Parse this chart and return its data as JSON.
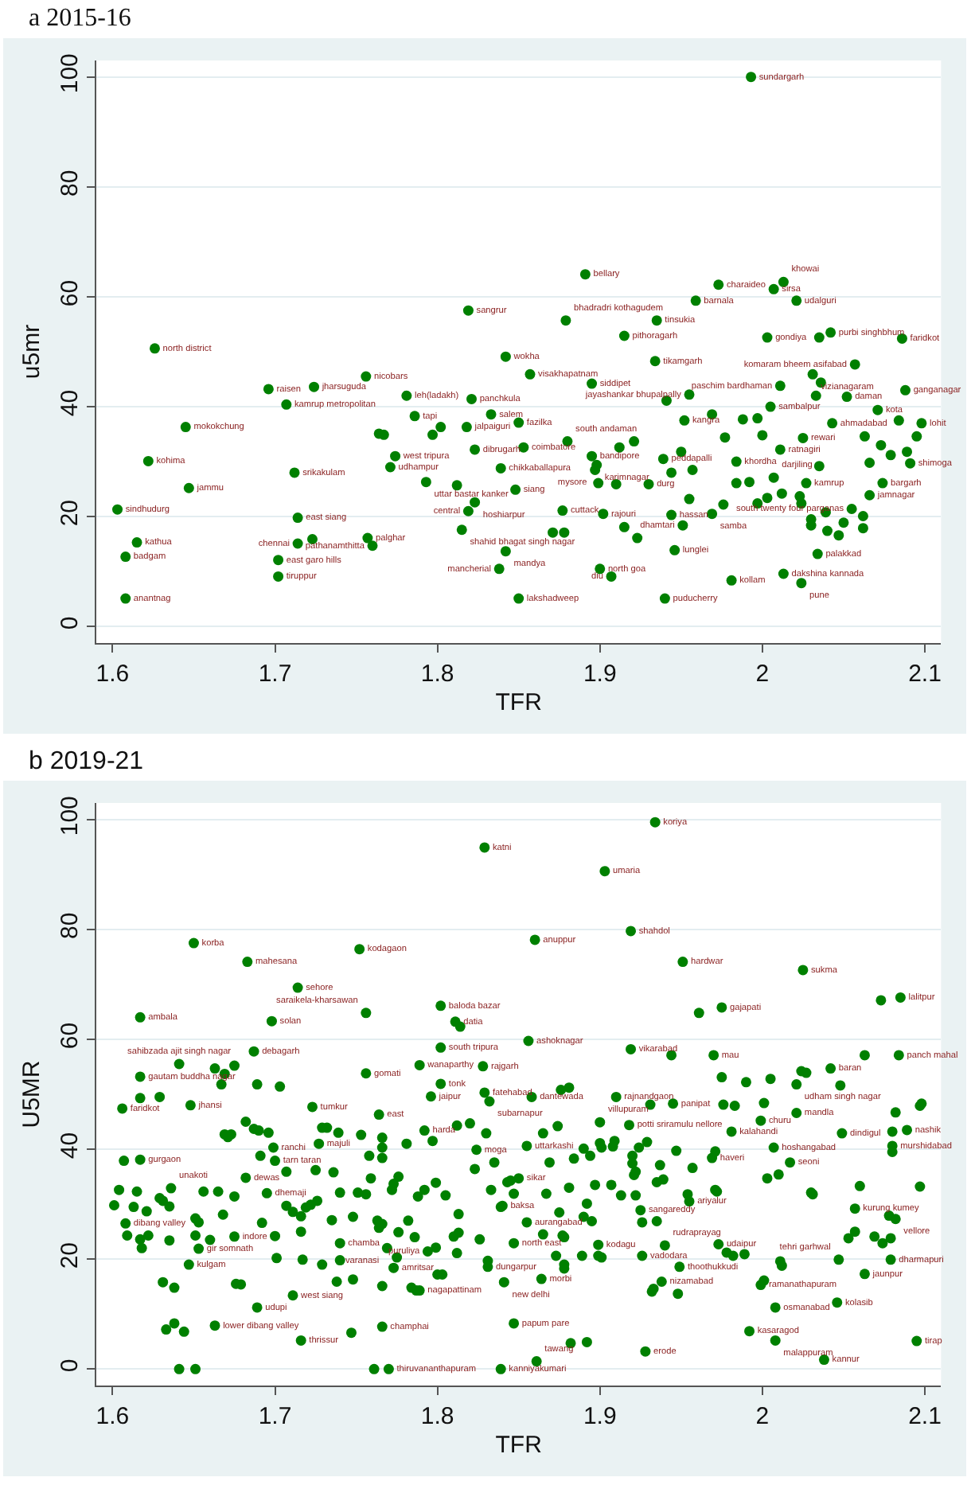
{
  "chart_data": [
    {
      "type": "scatter",
      "title": "a 2015-16",
      "xlabel": "TFR",
      "ylabel": "u5mr",
      "xlim": [
        1.59,
        2.11
      ],
      "ylim": [
        -3,
        103
      ],
      "xticks": [
        1.6,
        1.7,
        1.8,
        1.9,
        2,
        2.1
      ],
      "yticks": [
        0,
        20,
        40,
        60,
        80,
        100
      ],
      "grid": "y",
      "marker": "circle",
      "series": [
        {
          "color": "#008000",
          "x": [
            1.626,
            1.696,
            1.724,
            1.756,
            1.707,
            1.781,
            1.821,
            1.819,
            1.645,
            1.622,
            1.647,
            1.603,
            1.615,
            1.608,
            1.608,
            1.712,
            1.714,
            1.723,
            1.714,
            1.702,
            1.702,
            1.757,
            1.76,
            1.786,
            1.764,
            1.767,
            1.797,
            1.802,
            1.818,
            1.833,
            1.823,
            1.774,
            1.771,
            1.839,
            1.793,
            1.812,
            1.848,
            1.823,
            1.819,
            1.815,
            1.842,
            1.838,
            1.85,
            1.853,
            1.85,
            1.842,
            1.993,
            1.891,
            1.973,
            2.007,
            2.013,
            1.959,
            2.021,
            1.879,
            1.935,
            1.915,
            2.003,
            2.035,
            2.042,
            2.086,
            1.934,
            2.057,
            1.857,
            1.895,
            2.031,
            2.036,
            2.011,
            2.088,
            2.033,
            2.052,
            1.955,
            1.941,
            2.005,
            2.071,
            1.952,
            1.969,
            1.988,
            1.997,
            2.043,
            2.084,
            2.098,
            1.977,
            2.0,
            2.025,
            2.011,
            2.063,
            2.073,
            2.079,
            2.089,
            2.095,
            2.091,
            1.88,
            1.921,
            1.912,
            1.895,
            1.898,
            1.897,
            1.899,
            1.91,
            1.93,
            1.939,
            1.95,
            1.944,
            1.957,
            1.984,
            1.984,
            1.992,
            2.007,
            2.027,
            2.074,
            2.035,
            2.066,
            1.955,
            1.976,
            1.997,
            2.003,
            2.012,
            2.023,
            2.024,
            2.066,
            2.039,
            2.055,
            2.062,
            1.877,
            1.902,
            1.944,
            1.969,
            1.871,
            1.878,
            1.915,
            1.923,
            1.951,
            1.946,
            1.9,
            1.907,
            1.94,
            1.981,
            2.013,
            2.024,
            2.034,
            2.03,
            2.03,
            2.04,
            2.047,
            2.05,
            2.062
          ],
          "values": [
            50.6,
            43.2,
            43.6,
            45.5,
            40.4,
            42.0,
            41.4,
            57.5,
            36.3,
            30.1,
            25.2,
            21.3,
            15.3,
            12.7,
            5.1,
            28.0,
            19.8,
            15.9,
            15.1,
            12.1,
            9.1,
            16.1,
            14.7,
            38.3,
            35.1,
            34.9,
            34.9,
            36.3,
            36.3,
            38.6,
            32.2,
            31.0,
            29.0,
            28.8,
            26.3,
            25.7,
            24.9,
            22.6,
            21.0,
            17.6,
            13.7,
            10.5,
            5.1,
            32.6,
            37.1,
            49.1,
            100.0,
            64.1,
            62.2,
            61.4,
            62.7,
            59.3,
            59.3,
            55.7,
            55.7,
            52.9,
            52.6,
            52.6,
            53.5,
            52.4,
            48.3,
            47.7,
            45.9,
            44.2,
            45.9,
            44.4,
            43.8,
            43.0,
            42.0,
            41.8,
            42.2,
            41.1,
            40.0,
            39.4,
            37.5,
            38.6,
            37.7,
            37.9,
            37.0,
            37.5,
            37.0,
            34.4,
            34.8,
            34.3,
            32.2,
            34.6,
            33.0,
            31.2,
            31.8,
            34.6,
            29.7,
            33.7,
            33.7,
            32.6,
            31.0,
            29.4,
            28.5,
            26.1,
            25.9,
            25.9,
            30.5,
            31.8,
            28.0,
            28.5,
            30.0,
            26.1,
            26.3,
            27.1,
            26.1,
            26.1,
            29.2,
            29.8,
            23.2,
            22.2,
            22.4,
            23.4,
            24.2,
            23.7,
            22.4,
            23.9,
            20.8,
            21.4,
            20.1,
            21.1,
            20.5,
            20.3,
            20.5,
            17.1,
            17.1,
            18.1,
            16.1,
            18.4,
            13.9,
            10.5,
            9.1,
            5.1,
            8.4,
            9.6,
            7.9,
            13.2,
            19.5,
            18.4,
            17.4,
            16.6,
            18.9,
            17.9
          ],
          "value_labels": [
            "north district",
            "raisen",
            "jharsuguda",
            "nicobars",
            "kamrup metropolitan",
            "leh(ladakh)",
            "panchkula",
            "sangrur",
            "mokokchung",
            "kohima",
            "jammu",
            "sindhudurg",
            "kathua",
            "badgam",
            "anantnag",
            "srikakulam",
            "east siang",
            null,
            "chennai",
            "east garo hills",
            "tiruppur",
            "palghar",
            "pathanamthitta",
            "tapi",
            null,
            null,
            null,
            null,
            "jalpaiguri",
            "salem",
            "dibrugarh",
            "west tripura",
            "udhampur",
            "chikkaballapura",
            "uttar bastar kanker",
            null,
            "siang",
            "hoshiarpur",
            "central",
            "shahid bhagat singh nagar",
            "mandya",
            "mancherial",
            "lakshadweep",
            "coimbatore",
            "fazilka",
            "wokha",
            "sundargarh",
            "bellary",
            "charaideo",
            "sirsa",
            "khowai",
            "barnala",
            "udalguri",
            "bhadradri kothagudem",
            "tinsukia",
            "pithoragarh",
            "gondiya",
            null,
            "purbi singhbhum",
            "faridkot",
            "tikamgarh",
            "komaram bheem asifabad",
            "visakhapatnam",
            "siddipet",
            "vizianagaram",
            null,
            "paschim bardhaman",
            "ganganagar",
            null,
            "daman",
            "jayashankar bhupalpally",
            null,
            "sambalpur",
            "kota",
            "kangra",
            null,
            null,
            null,
            "ahmadabad",
            null,
            "lohit",
            null,
            null,
            "rewari",
            "ratnagiri",
            null,
            null,
            null,
            null,
            null,
            "shimoga",
            "south andaman",
            null,
            null,
            "bandipore",
            "karimnagar",
            "mysore",
            null,
            null,
            "durg",
            "peddapalli",
            null,
            null,
            null,
            "khordha",
            null,
            null,
            "darjiling",
            "kamrup",
            "bargarh",
            null,
            null,
            null,
            null,
            null,
            null,
            null,
            null,
            null,
            "jamnagar",
            null,
            "south twenty four parganas",
            null,
            "cuttack",
            "rajouri",
            "hassan",
            "samba",
            null,
            null,
            null,
            null,
            "dhamtari",
            "lunglei",
            "north goa",
            "diu",
            "puducherry",
            "kollam",
            "dakshina kannada",
            "pune",
            "palakkad",
            null,
            null,
            null,
            null,
            null,
            null
          ]
        }
      ]
    },
    {
      "type": "scatter",
      "title": "b 2019-21",
      "xlabel": "TFR",
      "ylabel": "U5MR",
      "xlim": [
        1.59,
        2.11
      ],
      "ylim": [
        -3,
        103
      ],
      "xticks": [
        1.6,
        1.7,
        1.8,
        1.9,
        2,
        2.1
      ],
      "yticks": [
        0,
        20,
        40,
        60,
        80,
        100
      ],
      "grid": "y",
      "marker": "circle",
      "series": [
        {
          "color": "#008000",
          "x": [
            1.829,
            1.65,
            1.752,
            1.683,
            1.714,
            1.802,
            1.617,
            1.698,
            1.756,
            1.811,
            1.814,
            1.687,
            1.802,
            1.856,
            1.641,
            1.663,
            1.669,
            1.675,
            1.617,
            1.667,
            1.689,
            1.703,
            1.756,
            1.789,
            1.828,
            1.802,
            1.796,
            1.829,
            1.832,
            1.617,
            1.629,
            1.606,
            1.648,
            1.723,
            1.934,
            1.903,
            1.86,
            1.919,
            1.951,
            2.025,
            2.073,
            2.085,
            1.961,
            1.975,
            1.919,
            1.944,
            1.97,
            2.063,
            2.084,
            1.975,
            1.99,
            2.005,
            2.024,
            2.027,
            2.042,
            2.021,
            2.048,
            1.858,
            1.876,
            1.881,
            1.91,
            2.098,
            1.682,
            1.687,
            1.69,
            1.696,
            1.764,
            1.601,
            1.604,
            1.607,
            1.617,
            1.608,
            1.609,
            1.613,
            1.615,
            1.617,
            1.618,
            1.622,
            1.621,
            1.629,
            1.631,
            1.636,
            1.635,
            1.635,
            1.631,
            1.638,
            1.633,
            1.638,
            1.644,
            1.663,
            1.641,
            1.651,
            1.647,
            1.651,
            1.651,
            1.653,
            1.656,
            1.665,
            1.653,
            1.66,
            1.668,
            1.669,
            1.671,
            1.673,
            1.675,
            1.675,
            1.676,
            1.679,
            1.682,
            1.689,
            1.692,
            1.695,
            1.691,
            1.699,
            1.7,
            1.7,
            1.701,
            1.707,
            1.711,
            1.716,
            1.719,
            1.722,
            1.726,
            1.711,
            1.707,
            1.716,
            1.717,
            1.716,
            1.725,
            1.727,
            1.729,
            1.732,
            1.729,
            1.735,
            1.736,
            1.739,
            1.74,
            1.74,
            1.74,
            1.738,
            1.748,
            1.747,
            1.748,
            1.751,
            1.756,
            1.753,
            1.759,
            1.758,
            1.763,
            1.764,
            1.766,
            1.761,
            1.77,
            1.766,
            1.766,
            1.766,
            1.766,
            1.766,
            1.769,
            1.773,
            1.775,
            1.776,
            1.773,
            1.776,
            1.772,
            1.781,
            1.782,
            1.784,
            1.787,
            1.789,
            1.788,
            1.786,
            1.792,
            1.794,
            1.792,
            1.8,
            1.803,
            1.799,
            1.799,
            1.797,
            1.805,
            1.813,
            1.81,
            1.812,
            1.812,
            1.82,
            1.813,
            1.824,
            1.823,
            1.83,
            1.831,
            1.831,
            1.826,
            1.833,
            1.835,
            1.839,
            1.843,
            1.847,
            1.847,
            1.841,
            1.847,
            1.839,
            1.882,
            1.892,
            1.861,
            1.928,
            1.992,
            2.008,
            2.038,
            2.095,
            2.046,
            2.008,
            1.999,
            2.001,
            1.932,
            1.933,
            1.938,
            1.948,
            1.949,
            1.864,
            1.865,
            1.877,
            1.878,
            1.873,
            1.878,
            1.878,
            1.899,
            1.899,
            1.889,
            1.901,
            1.926,
            1.94,
            1.973,
            1.978,
            1.982,
            1.989,
            2.011,
            2.012,
            2.047,
            2.079,
            2.063,
            2.053,
            2.057,
            2.069,
            2.074,
            2.079,
            2.057,
            2.078,
            2.082,
            2.06,
            2.097,
            2.049,
            2.08,
            2.089,
            2.08,
            2.08,
            2.082,
            2.097,
            2.021,
            1.999,
            1.981,
            2.017,
            2.003,
            2.01,
            2.007,
            2.03,
            2.031,
            1.971,
            1.972,
            1.954,
            1.955,
            1.947,
            1.957,
            1.969,
            1.971,
            1.931,
            1.945,
            1.976,
            1.983,
            2.001,
            1.918,
            1.9,
            1.874,
            1.865,
            1.855,
            1.869,
            1.884,
            1.89,
            1.894,
            1.9,
            1.901,
            1.909,
            1.908,
            1.92,
            1.92,
            1.922,
            1.921,
            1.929,
            1.924,
            1.937,
            1.935,
            1.939,
            1.845,
            1.85,
            1.867,
            1.881,
            1.892,
            1.897,
            1.907,
            1.913,
            1.922,
            1.84,
            1.855,
            1.875,
            1.89,
            1.895,
            1.925,
            1.926,
            1.935
          ],
          "values": [
            94.9,
            77.5,
            76.4,
            74.1,
            69.4,
            66.1,
            64.0,
            63.3,
            64.8,
            63.2,
            62.3,
            57.8,
            58.5,
            59.7,
            55.5,
            54.7,
            53.7,
            55.2,
            53.2,
            51.8,
            51.8,
            51.4,
            53.8,
            55.3,
            55.1,
            51.9,
            49.6,
            50.3,
            48.7,
            49.3,
            49.5,
            47.4,
            48.0,
            47.7,
            99.5,
            90.6,
            78.1,
            79.7,
            74.1,
            72.6,
            67.1,
            67.6,
            64.8,
            65.8,
            58.2,
            57.1,
            57.1,
            57.1,
            57.1,
            53.1,
            52.2,
            52.8,
            54.2,
            53.9,
            54.7,
            51.8,
            51.6,
            49.5,
            50.8,
            51.2,
            49.5,
            48.3,
            45.0,
            43.7,
            43.4,
            43.0,
            46.3,
            29.8,
            32.6,
            37.9,
            38.1,
            26.5,
            24.3,
            29.5,
            32.3,
            23.6,
            22.0,
            24.3,
            28.7,
            31.1,
            30.6,
            32.9,
            29.6,
            23.4,
            15.8,
            14.8,
            7.2,
            8.3,
            6.8,
            7.9,
            0,
            0,
            19.0,
            27.4,
            24.3,
            26.7,
            32.3,
            32.3,
            21.9,
            23.5,
            28.1,
            42.7,
            42.2,
            42.7,
            31.4,
            24.1,
            15.5,
            15.4,
            34.8,
            11.2,
            26.6,
            32.0,
            38.8,
            40.3,
            37.9,
            24.2,
            20.2,
            29.7,
            28.6,
            27.8,
            29.4,
            29.9,
            30.6,
            13.4,
            35.9,
            25.0,
            19.9,
            5.2,
            36.2,
            41.0,
            43.9,
            43.9,
            19.0,
            27.1,
            35.8,
            43.0,
            32.1,
            22.9,
            19.8,
            15.9,
            27.7,
            6.6,
            16.3,
            32.1,
            31.8,
            42.6,
            34.7,
            38.8,
            27.0,
            25.7,
            26.4,
            0,
            0,
            42.1,
            40.3,
            38.4,
            7.7,
            15.1,
            22.0,
            18.4,
            20.3,
            24.9,
            33.7,
            35.0,
            32.6,
            41.0,
            27.0,
            14.8,
            14.3,
            14.3,
            31.4,
            24.0,
            43.4,
            21.4,
            32.6,
            17.2,
            17.2,
            22.1,
            33.9,
            41.5,
            31.6,
            24.8,
            24.1,
            21.1,
            44.3,
            44.7,
            28.2,
            39.9,
            36.4,
            42.9,
            18.6,
            19.7,
            23.6,
            32.6,
            37.6,
            29.5,
            34.0,
            31.9,
            22.9,
            15.8,
            8.3,
            0,
            4.7,
            4.9,
            1.4,
            3.2,
            6.9,
            5.2,
            1.7,
            5.1,
            12.1,
            11.2,
            15.3,
            16.1,
            14.1,
            14.6,
            15.9,
            13.7,
            18.6,
            16.4,
            24.5,
            24.3,
            24.0,
            20.6,
            19.0,
            18.3,
            22.6,
            20.6,
            20.6,
            20.3,
            20.6,
            22.5,
            22.7,
            21.2,
            20.6,
            20.9,
            19.6,
            18.8,
            19.9,
            19.9,
            17.3,
            23.8,
            25.0,
            24.1,
            22.9,
            23.8,
            29.2,
            27.9,
            27.3,
            33.3,
            33.2,
            42.9,
            43.2,
            43.5,
            40.6,
            39.5,
            46.7,
            47.9,
            46.6,
            45.2,
            43.2,
            37.6,
            34.7,
            35.4,
            40.3,
            32.1,
            31.8,
            32.6,
            32.3,
            31.8,
            30.5,
            39.7,
            36.6,
            38.4,
            39.6,
            48.1,
            48.3,
            48.1,
            47.9,
            48.4,
            44.4,
            44.9,
            44.2,
            42.9,
            40.6,
            37.6,
            38.3,
            40.1,
            38.8,
            41.1,
            40.3,
            41.5,
            40.5,
            38.8,
            37.4,
            35.9,
            35.3,
            41.3,
            40.3,
            37.1,
            34.0,
            34.5,
            34.3,
            34.7,
            31.9,
            33.0,
            30.1,
            33.5,
            33.5,
            31.6,
            31.6,
            29.7,
            26.7,
            28.5,
            27.7,
            26.9,
            28.9,
            26.7,
            26.9
          ],
          "value_labels": [
            "katni",
            "korba",
            "kodagaon",
            "mahesana",
            "sehore",
            "baloda bazar",
            "ambala",
            "solan",
            "saraikela-kharsawan",
            "datia",
            null,
            "debagarh",
            "south tripura",
            "ashoknagar",
            "sahibzada ajit singh nagar",
            null,
            null,
            null,
            "gautam buddha nagar",
            null,
            null,
            null,
            "gomati",
            "wanaparthy",
            "rajgarh",
            "tonk",
            "jaipur",
            "fatehabad",
            "subarnapur",
            null,
            null,
            "faridkot",
            "jhansi",
            "tumkur",
            "koriya",
            "umaria",
            "anuppur",
            "shahdol",
            "hardwar",
            "sukma",
            null,
            "lalitpur",
            null,
            "gajapati",
            "vikarabad",
            null,
            "mau",
            null,
            "panch mahal",
            null,
            null,
            null,
            null,
            null,
            "baran",
            "udham singh nagar",
            null,
            "dantewada",
            null,
            null,
            "rajnandgaon",
            null,
            null,
            null,
            null,
            null,
            "east",
            null,
            null,
            null,
            "gurgaon",
            "dibang valley",
            null,
            null,
            null,
            null,
            null,
            null,
            null,
            null,
            null,
            "unakoti",
            null,
            null,
            null,
            null,
            null,
            null,
            null,
            "lower dibang valley",
            null,
            null,
            "kulgam",
            null,
            null,
            null,
            null,
            null,
            "gir somnath",
            null,
            null,
            null,
            null,
            null,
            null,
            "indore",
            null,
            null,
            "dewas",
            "udupi",
            null,
            "dhemaji",
            null,
            "ranchi",
            "tarn taran",
            null,
            null,
            null,
            null,
            null,
            null,
            null,
            null,
            "west siang",
            null,
            null,
            null,
            "thrissur",
            null,
            "majuli",
            null,
            null,
            null,
            null,
            null,
            null,
            null,
            "chamba",
            null,
            null,
            null,
            null,
            null,
            null,
            null,
            null,
            null,
            null,
            null,
            null,
            null,
            null,
            "thiruvananthapuram",
            null,
            null,
            null,
            "champhai",
            null,
            "varanasi",
            "amritsar",
            null,
            null,
            null,
            null,
            null,
            null,
            null,
            null,
            null,
            "nagapattinam",
            null,
            null,
            "harda",
            "puruliya",
            null,
            null,
            null,
            null,
            null,
            null,
            null,
            null,
            null,
            null,
            null,
            null,
            null,
            "moga",
            null,
            null,
            "dungarpur",
            null,
            null,
            null,
            null,
            null,
            null,
            null,
            "north east",
            "new delhi",
            "papum pare",
            "kanniyakumari",
            null,
            null,
            "tawang",
            "erode",
            "kasaragod",
            "malappuram",
            "kannur",
            "tirap",
            "kolasib",
            "osmanabad",
            "ramanathapuram",
            null,
            null,
            null,
            "nizamabad",
            null,
            "thoothukkudi",
            "morbi",
            null,
            null,
            null,
            null,
            null,
            null,
            "kodagu",
            null,
            null,
            null,
            "vadodara",
            "rudraprayag",
            "udaipur",
            null,
            null,
            null,
            null,
            null,
            "tehri garhwal",
            "dharmapuri",
            "jaunpur",
            null,
            null,
            null,
            null,
            null,
            "kurung kumey",
            null,
            "vellore",
            null,
            null,
            "dindigul",
            null,
            "nashik",
            "murshidabad",
            null,
            null,
            null,
            "mandla",
            "churu",
            "kalahandi",
            "seoni",
            null,
            null,
            "hoshangabad",
            null,
            null,
            null,
            null,
            null,
            "ariyalur",
            null,
            null,
            "haveri",
            null,
            null,
            "panipat",
            null,
            null,
            null,
            "potti sriramulu nellore",
            "villupuram",
            null,
            null,
            "uttarkashi",
            null,
            null,
            null,
            null,
            null,
            null,
            null,
            null,
            null,
            null,
            null,
            null,
            null,
            null,
            null,
            null,
            null,
            null,
            "sikar",
            null,
            null,
            null,
            null,
            null,
            null,
            null,
            "baksa",
            "aurangabad",
            null,
            null,
            null,
            "sangareddy",
            null,
            null
          ]
        }
      ]
    }
  ]
}
